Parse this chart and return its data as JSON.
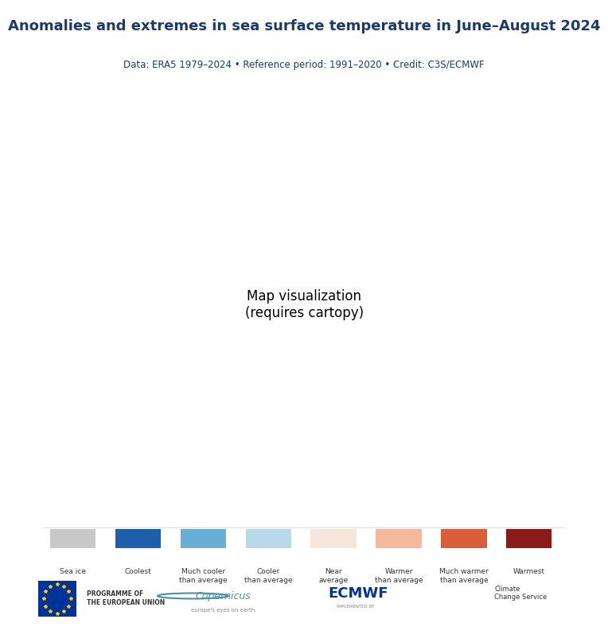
{
  "title": "Anomalies and extremes in sea surface temperature in June–August 2024",
  "subtitle": "Data: ERA5 1979–2024 • Reference period: 1991–2020 • Credit: C3S/ECMWF",
  "title_color": "#1a3a6b",
  "subtitle_color": "#1a3a6b",
  "background_color": "#ffffff",
  "map_bg_color": "#3d3d3d",
  "legend_items": [
    {
      "label": "Sea ice",
      "color": "#c8c8c8"
    },
    {
      "label": "Coolest",
      "color": "#1f5ea8"
    },
    {
      "label": "Much cooler\nthan average",
      "color": "#6aaed6"
    },
    {
      "label": "Cooler\nthan average",
      "color": "#b8d9ea"
    },
    {
      "label": "Near\naverage",
      "color": "#f5e6dc"
    },
    {
      "label": "Warmer\nthan average",
      "color": "#f4b89a"
    },
    {
      "label": "Much warmer\nthan average",
      "color": "#d95f3b"
    },
    {
      "label": "Warmest",
      "color": "#8b1a1a"
    }
  ],
  "fig_width": 7.11,
  "fig_height": 8.0
}
